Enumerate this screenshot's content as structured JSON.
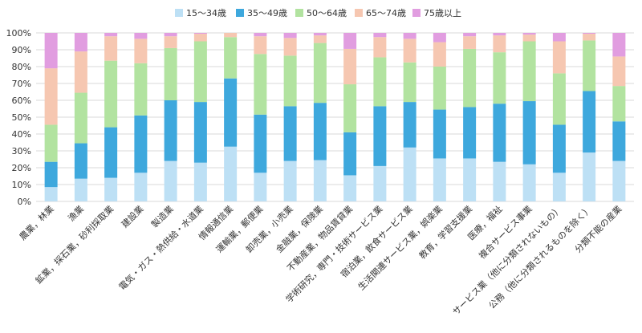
{
  "chart_data": {
    "type": "bar",
    "stacked": true,
    "percent": true,
    "ylim": [
      0,
      100
    ],
    "y_ticks": [
      "0%",
      "10%",
      "20%",
      "30%",
      "40%",
      "50%",
      "60%",
      "70%",
      "80%",
      "90%",
      "100%"
    ],
    "grid": true,
    "legend_position": "top",
    "categories": [
      "農業，林業",
      "漁業",
      "鉱業，採石業，砂利採取業",
      "建設業",
      "製造業",
      "電気・ガス・熱供給・水道業",
      "情報通信業",
      "運輸業，郵便業",
      "卸売業，小売業",
      "金融業，保険業",
      "不動産業，物品賃貸業",
      "学術研究，専門・技術サービス業",
      "宿泊業，飲食サービス業",
      "生活関連サービス業，娯楽業",
      "教育，学習支援業",
      "医療，福祉",
      "複合サービス事業",
      "サービス業（他に分類されないもの）",
      "公務（他に分類されるものを除く）",
      "分類不能の産業"
    ],
    "series": [
      {
        "name": "15～34歳",
        "color": "#bde0f5",
        "values": [
          8.5,
          13.5,
          14,
          17,
          24,
          23,
          32.5,
          17,
          24,
          24.5,
          15.5,
          21,
          32,
          25.5,
          25.5,
          23.5,
          22,
          17,
          29,
          24
        ]
      },
      {
        "name": "35～49歳",
        "color": "#3ea8dd",
        "values": [
          15,
          21,
          30,
          34,
          36,
          36,
          40.5,
          34.5,
          32.5,
          34,
          25.5,
          35.5,
          27,
          29,
          30.5,
          34.5,
          37.5,
          28.5,
          36.5,
          23.5
        ]
      },
      {
        "name": "50～64歳",
        "color": "#b2e3a0",
        "values": [
          22,
          30,
          39.5,
          31,
          31,
          36,
          24.5,
          36,
          30,
          35.5,
          28.5,
          29,
          23.5,
          25.5,
          34.5,
          30.5,
          35.5,
          30.5,
          30,
          21
        ]
      },
      {
        "name": "65～74歳",
        "color": "#f6c7b1",
        "values": [
          33.5,
          24.5,
          14.5,
          14.5,
          7,
          4.5,
          2.5,
          10.5,
          10.5,
          4.5,
          21,
          12,
          14,
          14.5,
          7.5,
          10,
          4,
          19,
          4,
          17.5
        ]
      },
      {
        "name": "75歳以上",
        "color": "#e19de0",
        "values": [
          21,
          11,
          2,
          3.5,
          2,
          0.5,
          0,
          2,
          3,
          1.5,
          9.5,
          2.5,
          3.5,
          5.5,
          2,
          1.5,
          1,
          5,
          0.5,
          14
        ]
      }
    ]
  }
}
